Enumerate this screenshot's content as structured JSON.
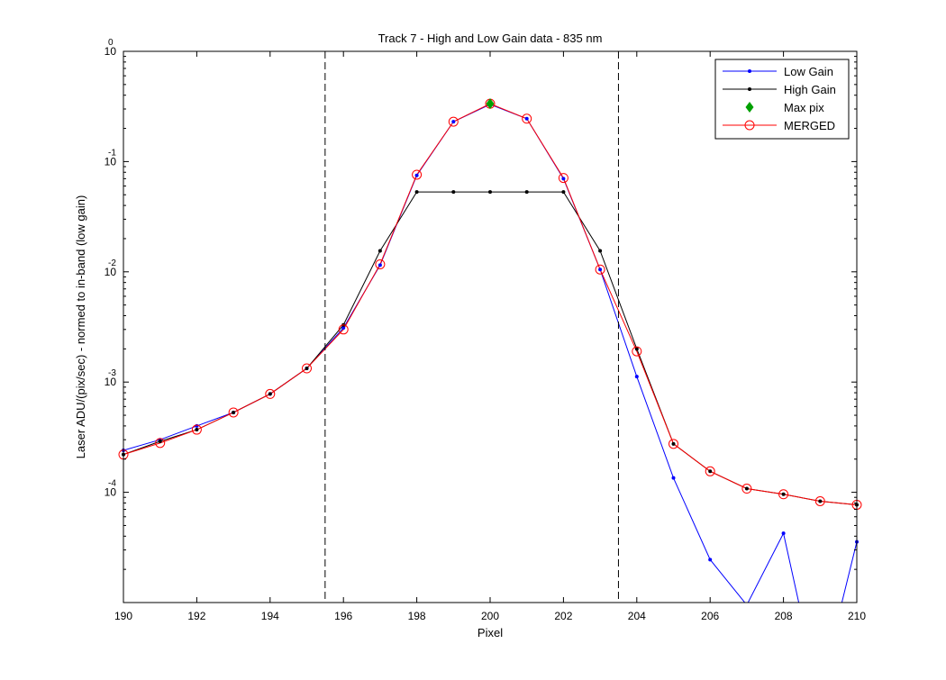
{
  "chart_data": {
    "type": "line",
    "title": "Track 7 - High and Low Gain data - 835 nm",
    "xlabel": "Pixel",
    "ylabel": "Laser ADU/(pix/sec) - normed to in-band (low gain)",
    "xlim": [
      190,
      210
    ],
    "ylim": [
      1e-05,
      1
    ],
    "yscale": "log",
    "x_ticks": [
      190,
      192,
      194,
      196,
      198,
      200,
      202,
      204,
      206,
      208,
      210
    ],
    "x_tick_labels": [
      "190",
      "192",
      "194",
      "196",
      "198",
      "200",
      "202",
      "204",
      "206",
      "208",
      "210"
    ],
    "y_ticks": [
      {
        "value": 1,
        "base": "10",
        "exp": "0"
      },
      {
        "value": 0.1,
        "base": "10",
        "exp": "-1"
      },
      {
        "value": 0.01,
        "base": "10",
        "exp": "-2"
      },
      {
        "value": 0.001,
        "base": "10",
        "exp": "-3"
      },
      {
        "value": 0.0001,
        "base": "10",
        "exp": "-4"
      }
    ],
    "vlines": [
      195.5,
      203.5
    ],
    "legend_position": "top-right",
    "grid": false,
    "series": [
      {
        "name": "Low Gain",
        "color": "#0000ff",
        "marker": "dot",
        "x": [
          190,
          191,
          192,
          193,
          194,
          195,
          196,
          197,
          198,
          199,
          200,
          201,
          202,
          203,
          204,
          205,
          206,
          207,
          208,
          208.5,
          209.5,
          210
        ],
        "y": [
          0.00024,
          0.0003,
          0.0004,
          0.00053,
          0.00078,
          0.00133,
          0.0031,
          0.0115,
          0.075,
          0.23,
          0.33,
          0.245,
          0.07,
          0.0105,
          0.00112,
          0.000135,
          2.45e-05,
          9.5e-06,
          4.25e-05,
          7.5e-06,
          7.5e-06,
          3.55e-05
        ]
      },
      {
        "name": "High Gain",
        "color": "#000000",
        "marker": "dot",
        "x": [
          190,
          191,
          192,
          193,
          194,
          195,
          196,
          197,
          198,
          199,
          200,
          201,
          202,
          203,
          204,
          205,
          206,
          207,
          208,
          209,
          210
        ],
        "y": [
          0.00022,
          0.00029,
          0.00037,
          0.00053,
          0.00078,
          0.00133,
          0.0033,
          0.0155,
          0.053,
          0.053,
          0.053,
          0.053,
          0.053,
          0.0155,
          0.002,
          0.000275,
          0.000155,
          0.000108,
          9.6e-05,
          8.3e-05,
          7.7e-05
        ]
      },
      {
        "name": "Max pix",
        "color": "#00a000",
        "marker": "diamond",
        "x": [
          200
        ],
        "y": [
          0.335
        ]
      },
      {
        "name": "MERGED",
        "color": "#ff0000",
        "marker": "circle",
        "x": [
          190,
          191,
          192,
          193,
          194,
          195,
          196,
          197,
          198,
          199,
          200,
          201,
          202,
          203,
          204,
          205,
          206,
          207,
          208,
          209,
          210
        ],
        "y": [
          0.00022,
          0.00028,
          0.00037,
          0.00053,
          0.00078,
          0.00133,
          0.003,
          0.0117,
          0.076,
          0.23,
          0.335,
          0.245,
          0.071,
          0.0105,
          0.0019,
          0.000275,
          0.000155,
          0.000108,
          9.6e-05,
          8.3e-05,
          7.7e-05
        ]
      }
    ]
  }
}
